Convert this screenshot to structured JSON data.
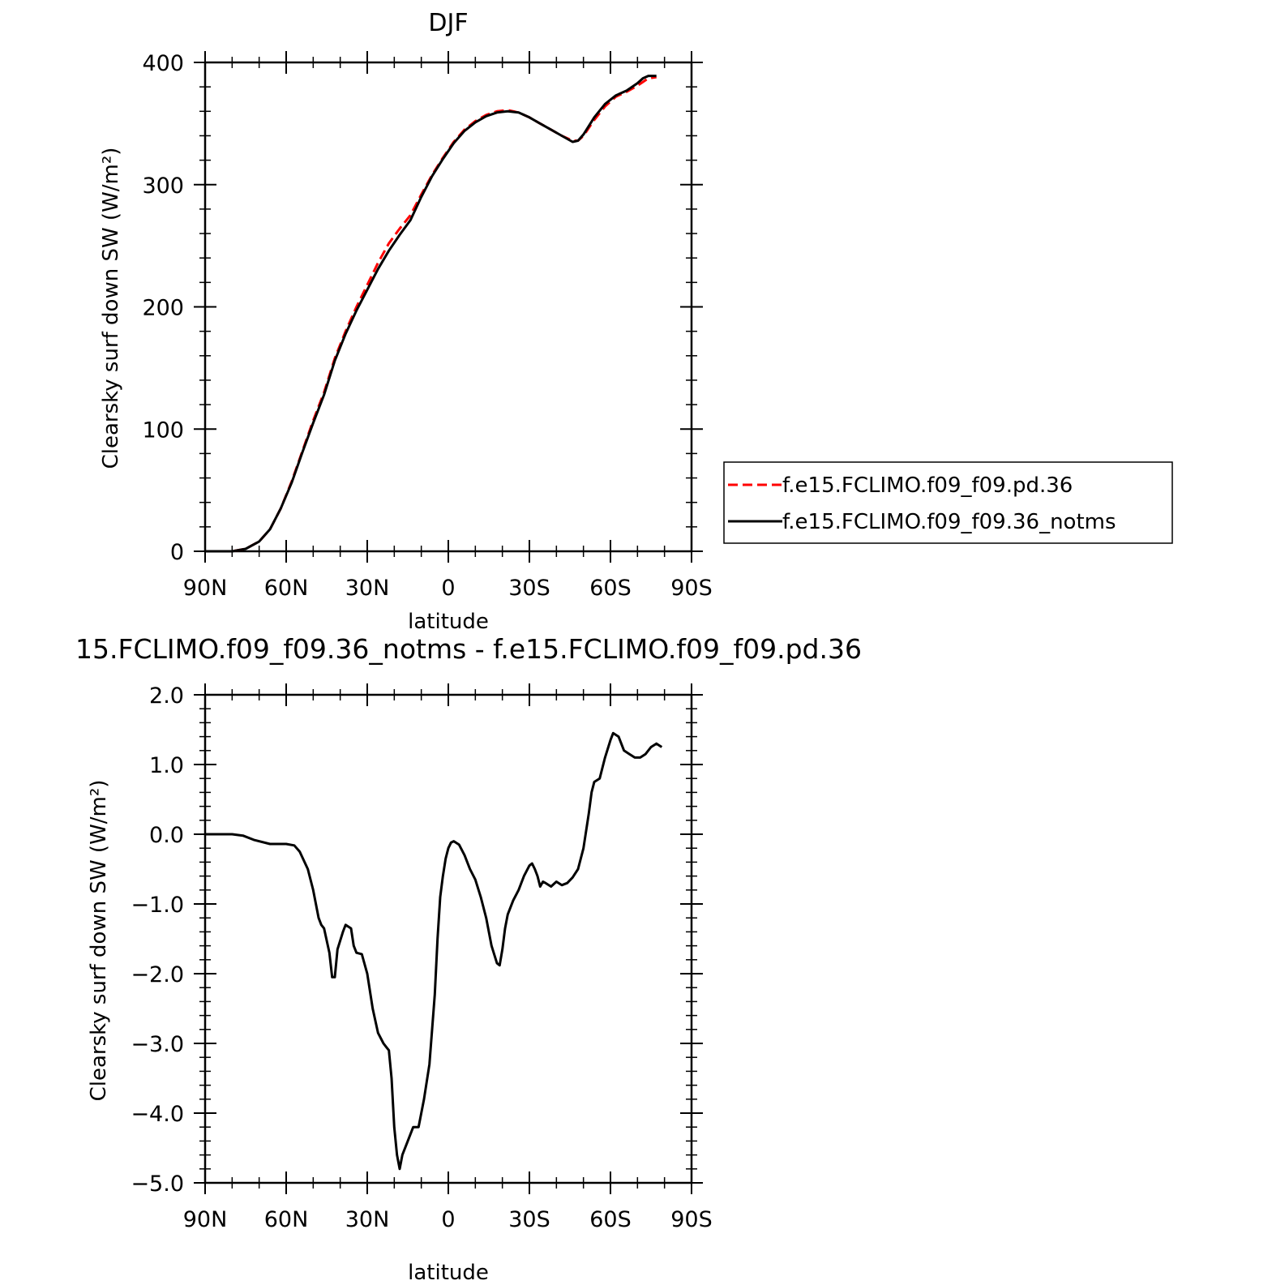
{
  "colors": {
    "series_pd": "#ff0000",
    "series_notms": "#000000",
    "axis": "#000000"
  },
  "chart_data": [
    {
      "type": "line",
      "title": "DJF",
      "xlabel": "latitude",
      "ylabel": "Clearsky surf down SW (W/m²)",
      "xlim": [
        -90,
        90
      ],
      "ylim": [
        0,
        400
      ],
      "xticks": [
        {
          "value": -90,
          "label": "90N"
        },
        {
          "value": -60,
          "label": "60N"
        },
        {
          "value": -30,
          "label": "30N"
        },
        {
          "value": 0,
          "label": "0"
        },
        {
          "value": 30,
          "label": "30S"
        },
        {
          "value": 60,
          "label": "60S"
        },
        {
          "value": 90,
          "label": "90S"
        }
      ],
      "yticks": [
        {
          "value": 0,
          "label": "0"
        },
        {
          "value": 100,
          "label": "100"
        },
        {
          "value": 200,
          "label": "200"
        },
        {
          "value": 300,
          "label": "300"
        },
        {
          "value": 400,
          "label": "400"
        }
      ],
      "legend_position": "right",
      "series": [
        {
          "name": "f.e15.FCLIMO.f09_f09.pd.36",
          "color": "#ff0000",
          "style": "dashed",
          "points": [
            [
              -90,
              0
            ],
            [
              -80,
              0
            ],
            [
              -75,
              2
            ],
            [
              -70,
              8
            ],
            [
              -66,
              18
            ],
            [
              -62,
              35
            ],
            [
              -58,
              57
            ],
            [
              -54,
              82
            ],
            [
              -50,
              107
            ],
            [
              -46,
              130
            ],
            [
              -42,
              158
            ],
            [
              -38,
              180
            ],
            [
              -34,
              200
            ],
            [
              -30,
              218
            ],
            [
              -26,
              236
            ],
            [
              -22,
              252
            ],
            [
              -18,
              264
            ],
            [
              -14,
              275
            ],
            [
              -10,
              292
            ],
            [
              -6,
              308
            ],
            [
              -2,
              322
            ],
            [
              2,
              335
            ],
            [
              6,
              345
            ],
            [
              10,
              352
            ],
            [
              14,
              357
            ],
            [
              18,
              360
            ],
            [
              22,
              361
            ],
            [
              26,
              359
            ],
            [
              30,
              355
            ],
            [
              34,
              350
            ],
            [
              38,
              345
            ],
            [
              42,
              340
            ],
            [
              46,
              336
            ],
            [
              48,
              336
            ],
            [
              50,
              340
            ],
            [
              54,
              353
            ],
            [
              58,
              364
            ],
            [
              62,
              372
            ],
            [
              66,
              376
            ],
            [
              70,
              381
            ],
            [
              72,
              384
            ],
            [
              74,
              387
            ],
            [
              77,
              388
            ]
          ]
        },
        {
          "name": "f.e15.FCLIMO.f09_f09.36_notms",
          "color": "#000000",
          "style": "solid",
          "points": [
            [
              -90,
              0
            ],
            [
              -80,
              0
            ],
            [
              -75,
              2
            ],
            [
              -70,
              8
            ],
            [
              -66,
              18
            ],
            [
              -62,
              35
            ],
            [
              -58,
              56
            ],
            [
              -54,
              81
            ],
            [
              -50,
              105
            ],
            [
              -46,
              128
            ],
            [
              -42,
              156
            ],
            [
              -38,
              178
            ],
            [
              -34,
              197
            ],
            [
              -30,
              214
            ],
            [
              -26,
              231
            ],
            [
              -22,
              246
            ],
            [
              -18,
              259
            ],
            [
              -14,
              271
            ],
            [
              -10,
              290
            ],
            [
              -6,
              307
            ],
            [
              -2,
              321
            ],
            [
              2,
              334
            ],
            [
              6,
              344
            ],
            [
              10,
              351
            ],
            [
              14,
              356
            ],
            [
              18,
              359
            ],
            [
              22,
              360
            ],
            [
              26,
              359
            ],
            [
              30,
              355
            ],
            [
              34,
              350
            ],
            [
              38,
              345
            ],
            [
              42,
              340
            ],
            [
              46,
              335
            ],
            [
              48,
              336
            ],
            [
              50,
              341
            ],
            [
              54,
              355
            ],
            [
              58,
              366
            ],
            [
              62,
              373
            ],
            [
              66,
              377
            ],
            [
              70,
              383
            ],
            [
              72,
              387
            ],
            [
              74,
              389
            ],
            [
              77,
              389
            ]
          ]
        }
      ]
    },
    {
      "type": "line",
      "title": "15.FCLIMO.f09_f09.36_notms - f.e15.FCLIMO.f09_f09.pd.36",
      "xlabel": "latitude",
      "ylabel": "Clearsky surf down SW (W/m²)",
      "xlim": [
        -90,
        90
      ],
      "ylim": [
        -5.0,
        2.0
      ],
      "xticks": [
        {
          "value": -90,
          "label": "90N"
        },
        {
          "value": -60,
          "label": "60N"
        },
        {
          "value": -30,
          "label": "30N"
        },
        {
          "value": 0,
          "label": "0"
        },
        {
          "value": 30,
          "label": "30S"
        },
        {
          "value": 60,
          "label": "60S"
        },
        {
          "value": 90,
          "label": "90S"
        }
      ],
      "yticks": [
        {
          "value": 2.0,
          "label": "2.0"
        },
        {
          "value": 1.0,
          "label": "1.0"
        },
        {
          "value": 0.0,
          "label": "0.0"
        },
        {
          "value": -1.0,
          "label": "−1.0"
        },
        {
          "value": -2.0,
          "label": "−2.0"
        },
        {
          "value": -3.0,
          "label": "−3.0"
        },
        {
          "value": -4.0,
          "label": "−4.0"
        },
        {
          "value": -5.0,
          "label": "−5.0"
        }
      ],
      "series": [
        {
          "name": "",
          "color": "#000000",
          "style": "solid",
          "points": [
            [
              -90,
              0
            ],
            [
              -80,
              0
            ],
            [
              -76,
              -0.02
            ],
            [
              -72,
              -0.08
            ],
            [
              -66,
              -0.14
            ],
            [
              -60,
              -0.14
            ],
            [
              -57,
              -0.16
            ],
            [
              -55,
              -0.25
            ],
            [
              -52,
              -0.5
            ],
            [
              -50,
              -0.8
            ],
            [
              -48,
              -1.2
            ],
            [
              -47,
              -1.3
            ],
            [
              -46,
              -1.35
            ],
            [
              -44,
              -1.7
            ],
            [
              -43,
              -2.05
            ],
            [
              -42,
              -2.05
            ],
            [
              -41,
              -1.65
            ],
            [
              -39,
              -1.4
            ],
            [
              -38,
              -1.3
            ],
            [
              -36,
              -1.35
            ],
            [
              -35,
              -1.6
            ],
            [
              -34,
              -1.7
            ],
            [
              -32,
              -1.72
            ],
            [
              -30,
              -2.0
            ],
            [
              -28,
              -2.5
            ],
            [
              -26,
              -2.85
            ],
            [
              -24,
              -3.0
            ],
            [
              -23,
              -3.05
            ],
            [
              -22,
              -3.1
            ],
            [
              -21,
              -3.5
            ],
            [
              -20,
              -4.2
            ],
            [
              -19,
              -4.6
            ],
            [
              -18,
              -4.8
            ],
            [
              -17,
              -4.6
            ],
            [
              -15,
              -4.4
            ],
            [
              -13,
              -4.2
            ],
            [
              -11,
              -4.2
            ],
            [
              -9,
              -3.8
            ],
            [
              -7,
              -3.3
            ],
            [
              -5,
              -2.3
            ],
            [
              -4,
              -1.5
            ],
            [
              -3,
              -0.9
            ],
            [
              -2,
              -0.6
            ],
            [
              -1,
              -0.35
            ],
            [
              0,
              -0.2
            ],
            [
              1,
              -0.12
            ],
            [
              2,
              -0.1
            ],
            [
              4,
              -0.15
            ],
            [
              6,
              -0.3
            ],
            [
              8,
              -0.5
            ],
            [
              10,
              -0.65
            ],
            [
              12,
              -0.9
            ],
            [
              14,
              -1.2
            ],
            [
              16,
              -1.6
            ],
            [
              18,
              -1.85
            ],
            [
              19,
              -1.88
            ],
            [
              20,
              -1.65
            ],
            [
              21,
              -1.35
            ],
            [
              22,
              -1.15
            ],
            [
              24,
              -0.95
            ],
            [
              26,
              -0.8
            ],
            [
              28,
              -0.6
            ],
            [
              30,
              -0.45
            ],
            [
              31,
              -0.42
            ],
            [
              32,
              -0.5
            ],
            [
              33,
              -0.6
            ],
            [
              34,
              -0.75
            ],
            [
              35,
              -0.68
            ],
            [
              36,
              -0.7
            ],
            [
              38,
              -0.75
            ],
            [
              40,
              -0.68
            ],
            [
              42,
              -0.73
            ],
            [
              44,
              -0.7
            ],
            [
              46,
              -0.62
            ],
            [
              48,
              -0.5
            ],
            [
              50,
              -0.2
            ],
            [
              52,
              0.3
            ],
            [
              53,
              0.6
            ],
            [
              54,
              0.75
            ],
            [
              56,
              0.8
            ],
            [
              58,
              1.1
            ],
            [
              60,
              1.35
            ],
            [
              61,
              1.45
            ],
            [
              63,
              1.4
            ],
            [
              65,
              1.2
            ],
            [
              67,
              1.15
            ],
            [
              69,
              1.1
            ],
            [
              71,
              1.1
            ],
            [
              73,
              1.15
            ],
            [
              75,
              1.25
            ],
            [
              77,
              1.3
            ],
            [
              79,
              1.25
            ]
          ]
        }
      ]
    }
  ]
}
